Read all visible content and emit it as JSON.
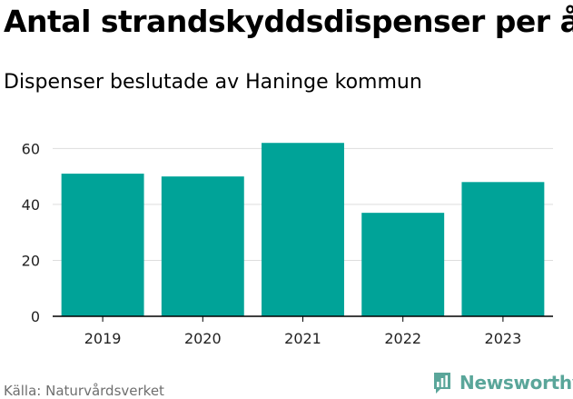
{
  "header": {
    "title": "Antal strandskyddsdispenser per år",
    "subtitle": "Dispenser beslutade av Haninge kommun"
  },
  "footer": {
    "source": "Källa: Naturvårdsverket",
    "brand": "Newsworthy",
    "brand_icon": "newsworthy-logo-icon"
  },
  "colors": {
    "bar": "#00A398",
    "grid": "#dddddd",
    "axis": "#000000",
    "brand": "#5aa69a"
  },
  "chart_data": {
    "type": "bar",
    "categories": [
      "2019",
      "2020",
      "2021",
      "2022",
      "2023"
    ],
    "values": [
      51,
      50,
      62,
      37,
      48
    ],
    "y_ticks": [
      0,
      20,
      40,
      60
    ],
    "ylim": [
      0,
      65
    ],
    "grid": true,
    "legend": "none"
  }
}
